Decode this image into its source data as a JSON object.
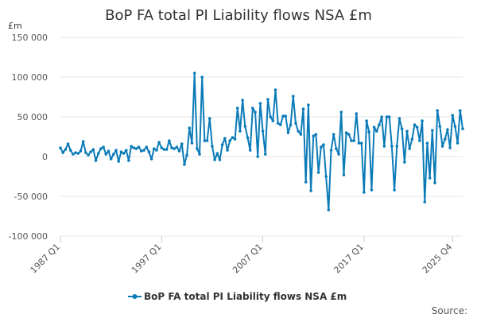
{
  "chart_data": {
    "type": "line",
    "title": "BoP FA total PI Liability flows NSA £m",
    "ylabel": "£m",
    "xlabel": "",
    "ylim": [
      -100000,
      150000
    ],
    "y_ticks": [
      150000,
      100000,
      50000,
      0,
      -50000,
      -100000
    ],
    "y_tick_labels": [
      "150 000",
      "100 000",
      "50 000",
      "0",
      "-50 000",
      "-100 000"
    ],
    "x_tick_labels": [
      "1987 Q1",
      "1997 Q1",
      "2007 Q1",
      "2017 Q1",
      "2025 Q4"
    ],
    "x_tick_indices": [
      0,
      40,
      80,
      120,
      155
    ],
    "legend": "BoP FA total PI Liability flows NSA £m",
    "legend_position": "bottom",
    "source_label": "Source:",
    "grid": true,
    "series": [
      {
        "name": "BoP FA total PI Liability flows NSA £m",
        "color": "#0b7bb8",
        "values": [
          11000,
          5000,
          9000,
          16000,
          8000,
          3000,
          5000,
          4000,
          7000,
          19000,
          5000,
          2000,
          6000,
          9000,
          -5000,
          4000,
          10000,
          12000,
          3000,
          7000,
          -3000,
          3000,
          8000,
          -6000,
          6000,
          4000,
          8000,
          -5000,
          13000,
          11000,
          10000,
          12000,
          7000,
          8000,
          12000,
          6000,
          -3000,
          10000,
          8000,
          18000,
          11000,
          9000,
          9000,
          20000,
          11000,
          10000,
          12000,
          7000,
          16000,
          -10000,
          2000,
          36000,
          17000,
          105000,
          10000,
          3000,
          100000,
          20000,
          20000,
          48000,
          13000,
          -4000,
          4000,
          -4000,
          15000,
          23000,
          8000,
          20000,
          24000,
          22000,
          61000,
          32000,
          71000,
          38000,
          24000,
          8000,
          61000,
          56000,
          0,
          67000,
          32000,
          3000,
          72000,
          50000,
          45000,
          84000,
          42000,
          40000,
          51000,
          51000,
          30000,
          40000,
          76000,
          42000,
          32000,
          28000,
          60000,
          -32000,
          65000,
          -43000,
          26000,
          28000,
          -20000,
          12000,
          15000,
          -25000,
          -67000,
          8000,
          28000,
          10000,
          3000,
          56000,
          -23000,
          30000,
          28000,
          20000,
          20000,
          54000,
          17000,
          17000,
          -45000,
          45000,
          31000,
          -42000,
          37000,
          32000,
          40000,
          50000,
          13000,
          50000,
          50000,
          13000,
          -42000,
          13000,
          48000,
          35000,
          -7000,
          32000,
          10000,
          22000,
          40000,
          37000,
          20000,
          45000,
          -57000,
          17000,
          -27000,
          33000,
          -33000,
          58000,
          38000,
          13000,
          22000,
          34000,
          11000,
          52000,
          38000,
          17000,
          58000,
          35000
        ]
      }
    ]
  }
}
